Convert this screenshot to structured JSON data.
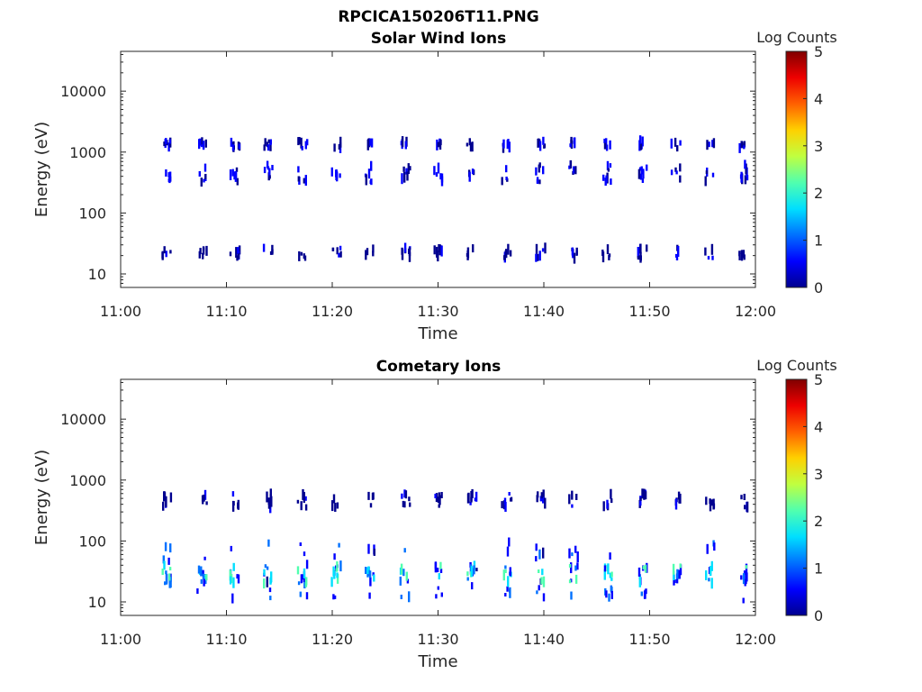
{
  "figure_title": "RPCICA150206T11.PNG",
  "colormap": [
    "#00008f",
    "#0000ff",
    "#0070ff",
    "#00dfff",
    "#50ffaf",
    "#c0ff40",
    "#ffd000",
    "#ff6000",
    "#ee0000",
    "#800000"
  ],
  "chart_data": [
    {
      "type": "heatmap",
      "title": "Solar Wind Ions",
      "xlabel": "Time",
      "ylabel": "Energy (eV)",
      "x_ticks": [
        "11:00",
        "11:10",
        "11:20",
        "11:30",
        "11:40",
        "11:50",
        "12:00"
      ],
      "xlim_minutes": [
        0,
        60
      ],
      "ylim": [
        6,
        45000
      ],
      "y_scale": "log",
      "y_ticks": [
        "10",
        "100",
        "1000",
        "10000"
      ],
      "y_tick_values": [
        10,
        100,
        1000,
        10000
      ],
      "colorbar": {
        "label": "Log Counts",
        "range": [
          0,
          5
        ],
        "ticks": [
          "0",
          "1",
          "2",
          "3",
          "4",
          "5"
        ]
      },
      "scan_times_minutes": [
        4.3,
        7.6,
        10.7,
        13.8,
        17.1,
        20.3,
        23.5,
        26.8,
        29.9,
        33.1,
        36.4,
        39.6,
        42.7,
        45.9,
        49.2,
        52.4,
        55.6,
        58.7
      ],
      "bands": [
        {
          "e_low": 1150,
          "e_high": 1550,
          "log_count": 0.5
        },
        {
          "e_low": 320,
          "e_high": 640,
          "log_count": 0.6
        },
        {
          "e_low": 18,
          "e_high": 27,
          "log_count": 0.4
        }
      ]
    },
    {
      "type": "heatmap",
      "title": "Cometary Ions",
      "xlabel": "Time",
      "ylabel": "Energy (eV)",
      "x_ticks": [
        "11:00",
        "11:10",
        "11:20",
        "11:30",
        "11:40",
        "11:50",
        "12:00"
      ],
      "xlim_minutes": [
        0,
        60
      ],
      "ylim": [
        6,
        45000
      ],
      "y_scale": "log",
      "y_ticks": [
        "10",
        "100",
        "1000",
        "10000"
      ],
      "y_tick_values": [
        10,
        100,
        1000,
        10000
      ],
      "colorbar": {
        "label": "Log Counts",
        "range": [
          0,
          5
        ],
        "ticks": [
          "0",
          "1",
          "2",
          "3",
          "4",
          "5"
        ]
      },
      "scan_times_minutes": [
        4.3,
        7.6,
        10.7,
        13.8,
        17.1,
        20.3,
        23.5,
        26.8,
        29.9,
        33.1,
        36.4,
        39.6,
        42.7,
        45.9,
        49.2,
        52.4,
        55.6,
        58.7
      ],
      "bands": [
        {
          "e_low": 350,
          "e_high": 600,
          "log_count": 0.4
        },
        {
          "e_low": 10,
          "e_high": 100,
          "log_count": 0.9
        },
        {
          "e_low": 20,
          "e_high": 40,
          "log_count": 1.6
        }
      ]
    }
  ]
}
